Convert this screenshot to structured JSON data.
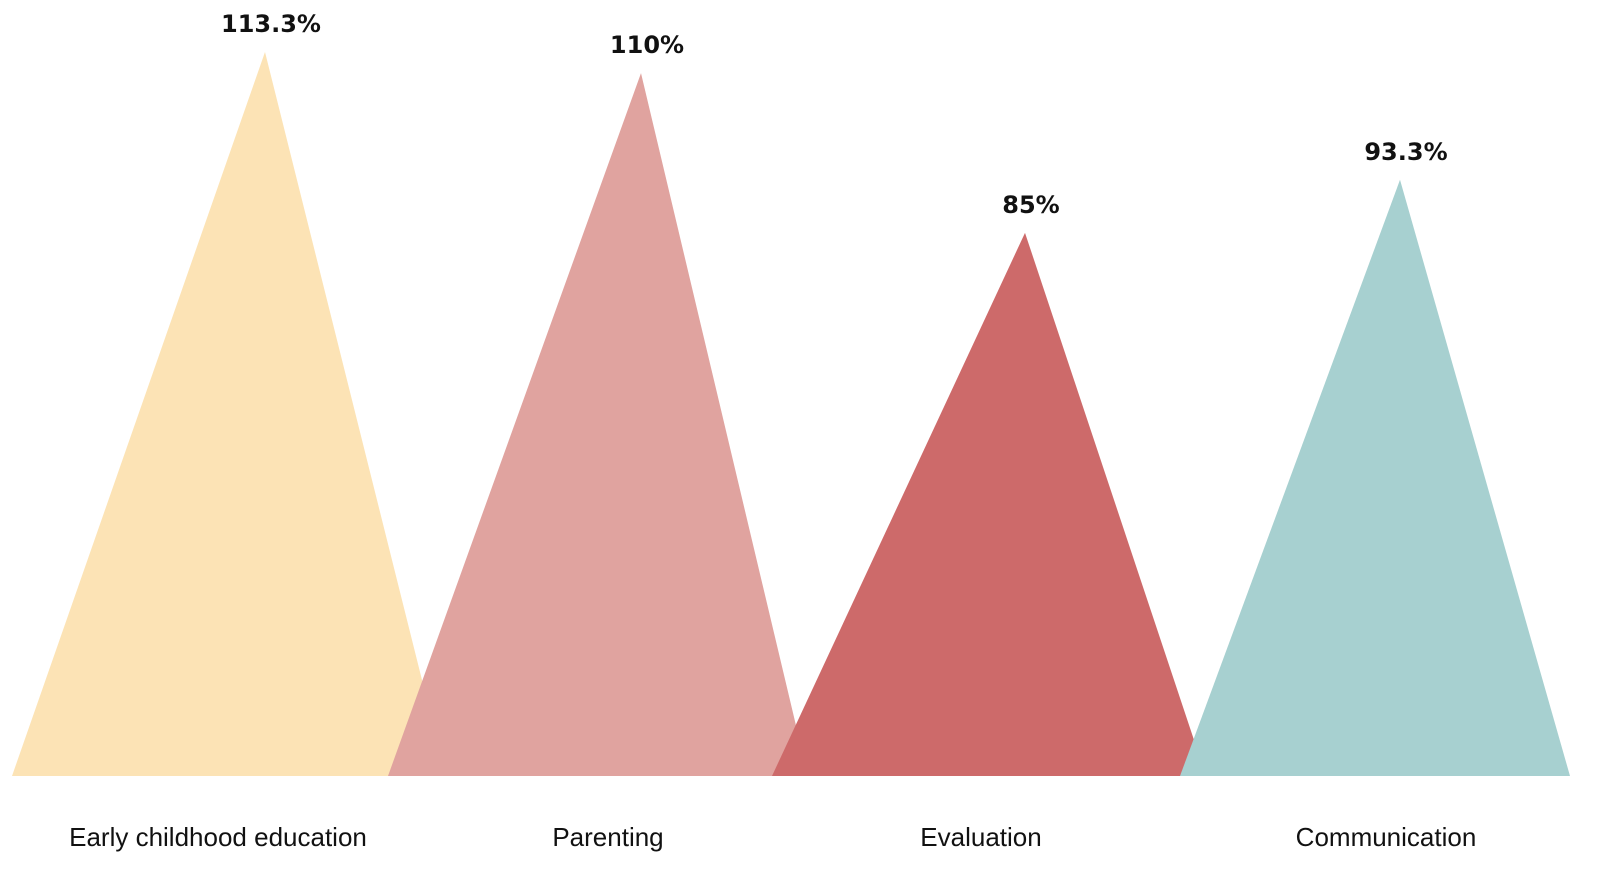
{
  "chart_data": {
    "type": "bar",
    "style": "triangle-peaks",
    "title": "",
    "xlabel": "",
    "ylabel": "",
    "ylim": [
      0,
      120
    ],
    "grid": false,
    "legend": "none",
    "categories": [
      "Early childhood education",
      "Parenting",
      "Evaluation",
      "Communication"
    ],
    "values": [
      113.3,
      110,
      85,
      93.3
    ],
    "data_labels": [
      "113.3%",
      "110%",
      "85%",
      "93.3%"
    ],
    "colors": [
      "#fce3b5",
      "#e0a39f",
      "#cd6a6a",
      "#a7d0d0"
    ]
  }
}
